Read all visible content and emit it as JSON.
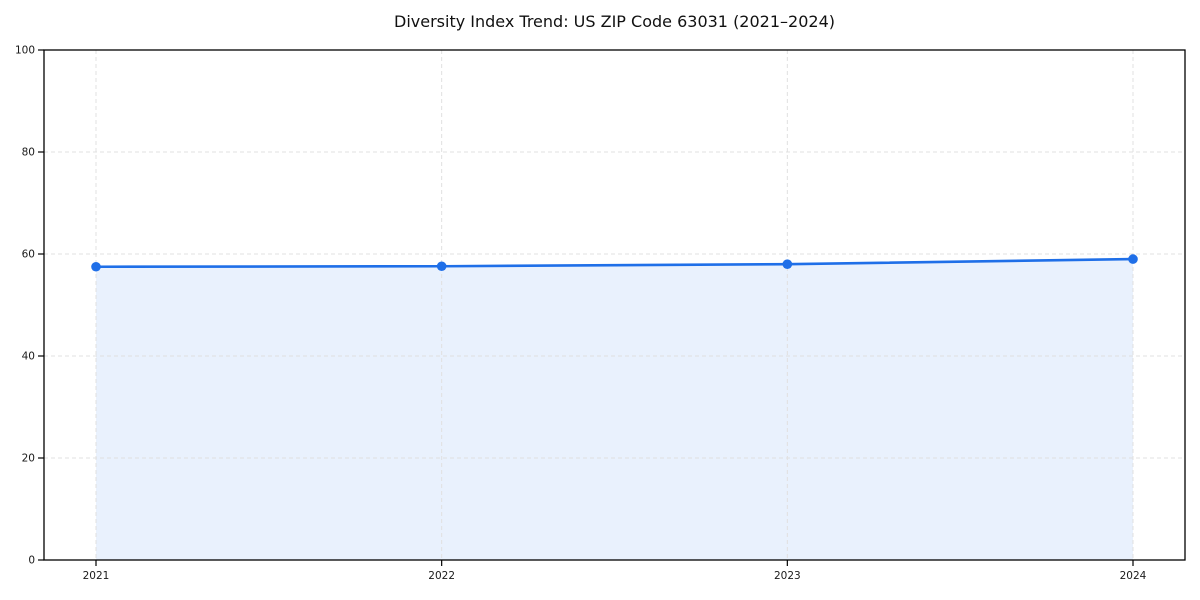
{
  "chart_data": {
    "type": "area",
    "title": "Diversity Index Trend: US ZIP Code 63031 (2021–2024)",
    "categories": [
      "2021",
      "2022",
      "2023",
      "2024"
    ],
    "series": [
      {
        "name": "Diversity Index",
        "values": [
          57.5,
          57.6,
          58.0,
          59.0
        ]
      }
    ],
    "xlabel": "",
    "ylabel": "",
    "ylim": [
      0,
      100
    ],
    "yticks": [
      0,
      20,
      40,
      60,
      80,
      100
    ],
    "grid": true,
    "grid_style": "dashed",
    "legend": false,
    "colors": {
      "line": "#1f6fe8",
      "marker": "#1f6fe8",
      "fill": "#e9f1fd",
      "grid": "#e0e0e0",
      "spine": "#000000",
      "tick_label": "#1a1a1a",
      "title": "#111111",
      "background": "#ffffff"
    }
  }
}
